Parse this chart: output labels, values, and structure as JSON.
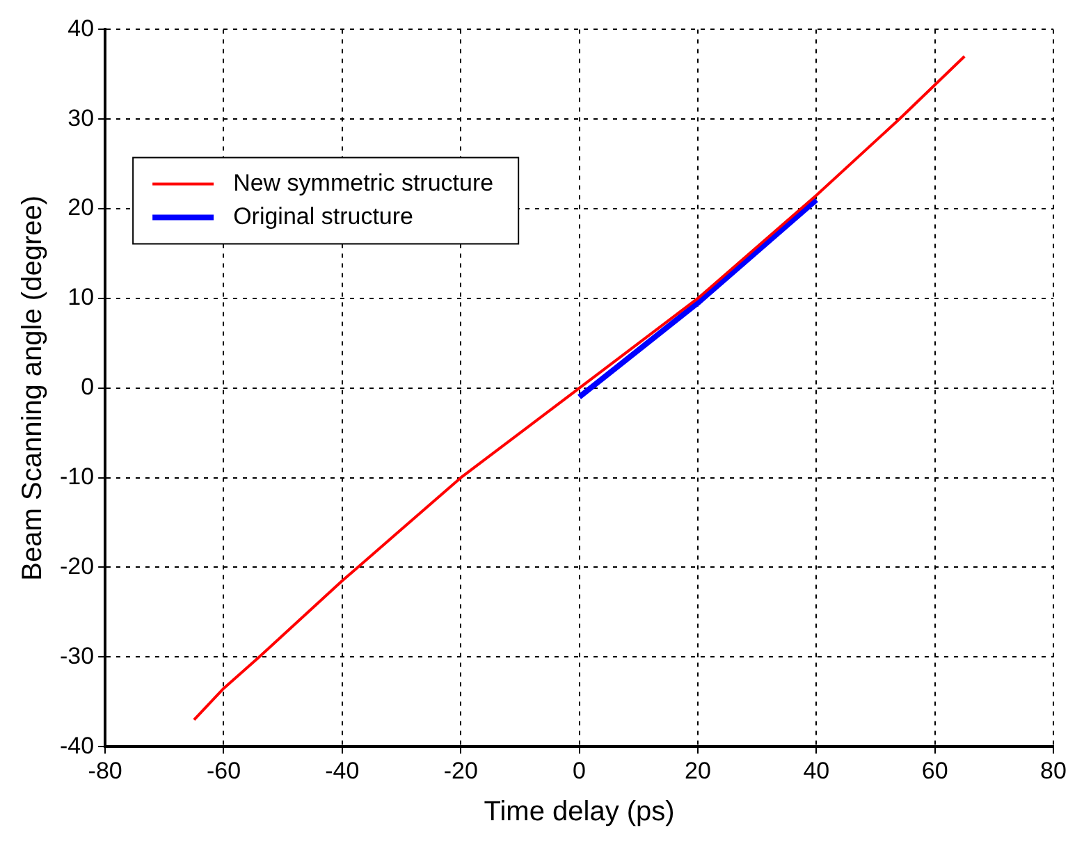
{
  "chart_data": {
    "type": "line",
    "xlabel": "Time delay (ps)",
    "ylabel": "Beam Scanning angle (degree)",
    "xlim": [
      -80,
      80
    ],
    "xticks": [
      -80,
      -60,
      -40,
      -20,
      0,
      20,
      40,
      60,
      80
    ],
    "ylim": [
      -40,
      40
    ],
    "yticks": [
      -40,
      -30,
      -20,
      -10,
      0,
      10,
      20,
      30,
      40
    ],
    "grid": true,
    "legend": "top left",
    "line_style": "solid",
    "marker": "none",
    "series": [
      {
        "name": "New symmetric structure",
        "color": "#ff0000",
        "x": [
          -65,
          -60,
          -54,
          -40,
          -20,
          0,
          20,
          40,
          54,
          65
        ],
        "values": [
          -37,
          -33.5,
          -30,
          -21.5,
          -10,
          0,
          10,
          21.5,
          30,
          37
        ]
      },
      {
        "name": "Original structure",
        "color": "#0000ff",
        "x": [
          0,
          20,
          40
        ],
        "values": [
          -1,
          9.5,
          21
        ]
      }
    ]
  }
}
